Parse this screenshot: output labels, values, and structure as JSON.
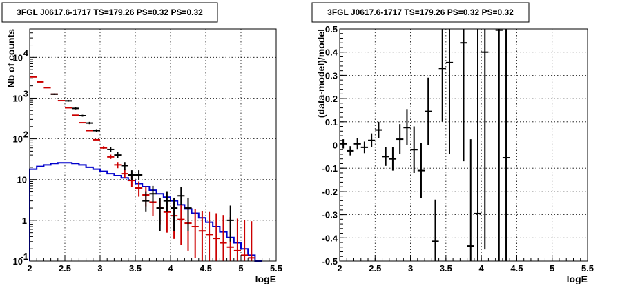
{
  "chart_data": [
    {
      "type": "line",
      "title": "3FGL J0617.6-1717 TS=179.26 PS=0.32 PS=0.32",
      "xlabel": "logE",
      "ylabel": "Nb of counts",
      "xlim": [
        2,
        5.5
      ],
      "ylim": [
        0.1,
        50000
      ],
      "y_scale": "log",
      "grid": true,
      "x_ticks": [
        "2",
        "2.5",
        "3",
        "3.5",
        "4",
        "4.5",
        "5",
        "5.5"
      ],
      "y_ticks": [
        {
          "value": 0.1,
          "base": "10",
          "exp": "-1"
        },
        {
          "value": 1,
          "base": "1",
          "exp": ""
        },
        {
          "value": 10,
          "base": "10",
          "exp": ""
        },
        {
          "value": 100,
          "base": "10",
          "exp": "2"
        },
        {
          "value": 1000,
          "base": "10",
          "exp": "3"
        },
        {
          "value": 10000,
          "base": "10",
          "exp": "4"
        }
      ],
      "series": [
        {
          "kind": "step",
          "color": "#0000cc",
          "bin_width": 0.1,
          "x": [
            2.05,
            2.15,
            2.25,
            2.35,
            2.45,
            2.55,
            2.65,
            2.75,
            2.85,
            2.95,
            3.05,
            3.15,
            3.25,
            3.35,
            3.45,
            3.55,
            3.65,
            3.75,
            3.85,
            3.95,
            4.05,
            4.15,
            4.25,
            4.35,
            4.45,
            4.55,
            4.65,
            4.75,
            4.85,
            4.95,
            5.05,
            5.15,
            5.25
          ],
          "y": [
            18,
            21,
            23,
            25,
            26,
            26,
            25,
            23,
            20,
            18,
            16,
            14,
            12.5,
            11,
            9.5,
            8,
            6.7,
            5.5,
            4.5,
            3.7,
            3.0,
            2.4,
            1.9,
            1.5,
            1.15,
            0.9,
            0.7,
            0.52,
            0.38,
            0.28,
            0.2,
            0.14,
            0.1
          ]
        },
        {
          "kind": "errorbar",
          "color": "#cc0000",
          "bin_width": 0.1,
          "points": [
            {
              "x": 2.05,
              "y": 3300,
              "lo": 3300,
              "hi": 3300
            },
            {
              "x": 2.15,
              "y": 2500,
              "lo": 2500,
              "hi": 2500
            },
            {
              "x": 2.25,
              "y": 1800,
              "lo": 1800,
              "hi": 1800
            },
            {
              "x": 2.35,
              "y": 1250,
              "lo": 1250,
              "hi": 1250
            },
            {
              "x": 2.45,
              "y": 870,
              "lo": 870,
              "hi": 870
            },
            {
              "x": 2.55,
              "y": 580,
              "lo": 580,
              "hi": 580
            },
            {
              "x": 2.65,
              "y": 380,
              "lo": 380,
              "hi": 380
            },
            {
              "x": 2.75,
              "y": 250,
              "lo": 250,
              "hi": 250
            },
            {
              "x": 2.85,
              "y": 160,
              "lo": 160,
              "hi": 160
            },
            {
              "x": 2.95,
              "y": 95,
              "lo": 95,
              "hi": 95
            },
            {
              "x": 3.05,
              "y": 60,
              "lo": 55,
              "hi": 66
            },
            {
              "x": 3.15,
              "y": 36,
              "lo": 32,
              "hi": 41
            },
            {
              "x": 3.25,
              "y": 23,
              "lo": 19,
              "hi": 27
            },
            {
              "x": 3.35,
              "y": 14,
              "lo": 11,
              "hi": 18
            },
            {
              "x": 3.45,
              "y": 9.5,
              "lo": 6.5,
              "hi": 13
            },
            {
              "x": 3.55,
              "y": 6.2,
              "lo": 3.8,
              "hi": 9
            },
            {
              "x": 3.65,
              "y": 4.2,
              "lo": 2.2,
              "hi": 6.8
            },
            {
              "x": 3.75,
              "y": 2.8,
              "lo": 1.3,
              "hi": 4.8
            },
            {
              "x": 3.85,
              "y": 2.0,
              "lo": 0.8,
              "hi": 3.6
            },
            {
              "x": 3.95,
              "y": 1.6,
              "lo": 0.5,
              "hi": 3.2
            },
            {
              "x": 4.05,
              "y": 1.3,
              "lo": 0.35,
              "hi": 2.8
            },
            {
              "x": 4.15,
              "y": 1.05,
              "lo": 0.25,
              "hi": 2.4
            },
            {
              "x": 4.25,
              "y": 0.85,
              "lo": 0.18,
              "hi": 2.1
            },
            {
              "x": 4.35,
              "y": 0.7,
              "lo": 0.12,
              "hi": 1.9
            },
            {
              "x": 4.45,
              "y": 0.55,
              "lo": 0.1,
              "hi": 1.7
            },
            {
              "x": 4.55,
              "y": 0.45,
              "lo": 0.1,
              "hi": 1.6
            },
            {
              "x": 4.65,
              "y": 0.36,
              "lo": 0.1,
              "hi": 1.5
            },
            {
              "x": 4.75,
              "y": 0.28,
              "lo": 0.1,
              "hi": 1.35
            },
            {
              "x": 4.85,
              "y": 0.22,
              "lo": 0.1,
              "hi": 1.2
            },
            {
              "x": 4.95,
              "y": 0.18,
              "lo": 0.1,
              "hi": 1.1
            },
            {
              "x": 5.05,
              "y": 0.14,
              "lo": 0.1,
              "hi": 1.0
            },
            {
              "x": 5.15,
              "y": 0.12,
              "lo": 0.1,
              "hi": 0.95
            }
          ]
        },
        {
          "kind": "errorbar",
          "color": "#000000",
          "bin_width": 0.1,
          "points": [
            {
              "x": 2.35,
              "y": 1250,
              "lo": 1200,
              "hi": 1300
            },
            {
              "x": 2.55,
              "y": 860,
              "lo": 820,
              "hi": 900
            },
            {
              "x": 2.65,
              "y": 560,
              "lo": 530,
              "hi": 590
            },
            {
              "x": 2.75,
              "y": 370,
              "lo": 350,
              "hi": 390
            },
            {
              "x": 2.85,
              "y": 245,
              "lo": 230,
              "hi": 262
            },
            {
              "x": 2.95,
              "y": 160,
              "lo": 148,
              "hi": 173
            },
            {
              "x": 3.15,
              "y": 55,
              "lo": 48,
              "hi": 62
            },
            {
              "x": 3.25,
              "y": 40,
              "lo": 34,
              "hi": 47
            },
            {
              "x": 3.35,
              "y": 22,
              "lo": 17,
              "hi": 27
            },
            {
              "x": 3.45,
              "y": 13,
              "lo": 9.5,
              "hi": 17
            },
            {
              "x": 3.55,
              "y": 13,
              "lo": 9.5,
              "hi": 17
            },
            {
              "x": 3.65,
              "y": 3.0,
              "lo": 1.6,
              "hi": 5.0
            },
            {
              "x": 3.75,
              "y": 4.5,
              "lo": 2.8,
              "hi": 7.0
            },
            {
              "x": 3.85,
              "y": 2.0,
              "lo": 0.55,
              "hi": 3.6
            },
            {
              "x": 3.95,
              "y": 3.0,
              "lo": 1.6,
              "hi": 5.0
            },
            {
              "x": 4.05,
              "y": 2.0,
              "lo": 0.55,
              "hi": 3.6
            },
            {
              "x": 4.15,
              "y": 4.0,
              "lo": 2.4,
              "hi": 6.5
            },
            {
              "x": 4.25,
              "y": 2.0,
              "lo": 0.55,
              "hi": 3.6
            },
            {
              "x": 4.85,
              "y": 1.0,
              "lo": 0.3,
              "hi": 2.3
            }
          ]
        }
      ]
    },
    {
      "type": "scatter",
      "title": "3FGL J0617.6-1717 TS=179.26 PS=0.32 PS=0.32",
      "xlabel": "logE",
      "ylabel": "(data-model)/model",
      "xlim": [
        2,
        5.5
      ],
      "ylim": [
        -0.5,
        0.5
      ],
      "grid": true,
      "x_ticks": [
        "2",
        "2.5",
        "3",
        "3.5",
        "4",
        "4.5",
        "5",
        "5.5"
      ],
      "y_ticks": [
        "-0.5",
        "-0.4",
        "-0.3",
        "-0.2",
        "-0.1",
        "0",
        "0.1",
        "0.2",
        "0.3",
        "0.4",
        "0.5"
      ],
      "series": [
        {
          "kind": "errorbar",
          "color": "#000000",
          "bin_width": 0.1,
          "points": [
            {
              "x": 2.05,
              "y": 0.005,
              "lo": -0.015,
              "hi": 0.025
            },
            {
              "x": 2.15,
              "y": -0.025,
              "lo": -0.045,
              "hi": -0.005
            },
            {
              "x": 2.25,
              "y": 0.005,
              "lo": -0.02,
              "hi": 0.03
            },
            {
              "x": 2.35,
              "y": -0.01,
              "lo": -0.035,
              "hi": 0.015
            },
            {
              "x": 2.45,
              "y": 0.02,
              "lo": -0.01,
              "hi": 0.05
            },
            {
              "x": 2.55,
              "y": 0.065,
              "lo": 0.03,
              "hi": 0.1
            },
            {
              "x": 2.65,
              "y": -0.05,
              "lo": -0.09,
              "hi": -0.01
            },
            {
              "x": 2.75,
              "y": -0.06,
              "lo": -0.11,
              "hi": -0.01
            },
            {
              "x": 2.85,
              "y": 0.025,
              "lo": -0.04,
              "hi": 0.09
            },
            {
              "x": 2.95,
              "y": 0.075,
              "lo": 0.0,
              "hi": 0.155
            },
            {
              "x": 3.05,
              "y": -0.02,
              "lo": -0.12,
              "hi": 0.08
            },
            {
              "x": 3.15,
              "y": -0.11,
              "lo": -0.23,
              "hi": 0.01
            },
            {
              "x": 3.25,
              "y": 0.145,
              "lo": 0.0,
              "hi": 0.29
            },
            {
              "x": 3.35,
              "y": -0.415,
              "lo": -0.5,
              "hi": -0.235
            },
            {
              "x": 3.45,
              "y": 0.33,
              "lo": 0.1,
              "hi": 0.5
            },
            {
              "x": 3.55,
              "y": 0.355,
              "lo": -0.04,
              "hi": 0.5
            },
            {
              "x": 3.75,
              "y": 0.44,
              "lo": -0.07,
              "hi": 0.5
            },
            {
              "x": 3.85,
              "y": -0.435,
              "lo": -0.5,
              "hi": 0.025
            },
            {
              "x": 3.95,
              "y": -0.295,
              "lo": -0.5,
              "hi": 0.5
            },
            {
              "x": 4.05,
              "y": 0.4,
              "lo": -0.45,
              "hi": 0.5
            },
            {
              "x": 4.25,
              "y": 0.495,
              "lo": -0.5,
              "hi": 0.5
            },
            {
              "x": 4.35,
              "y": -0.055,
              "lo": -0.5,
              "hi": 0.5
            }
          ]
        }
      ]
    }
  ]
}
